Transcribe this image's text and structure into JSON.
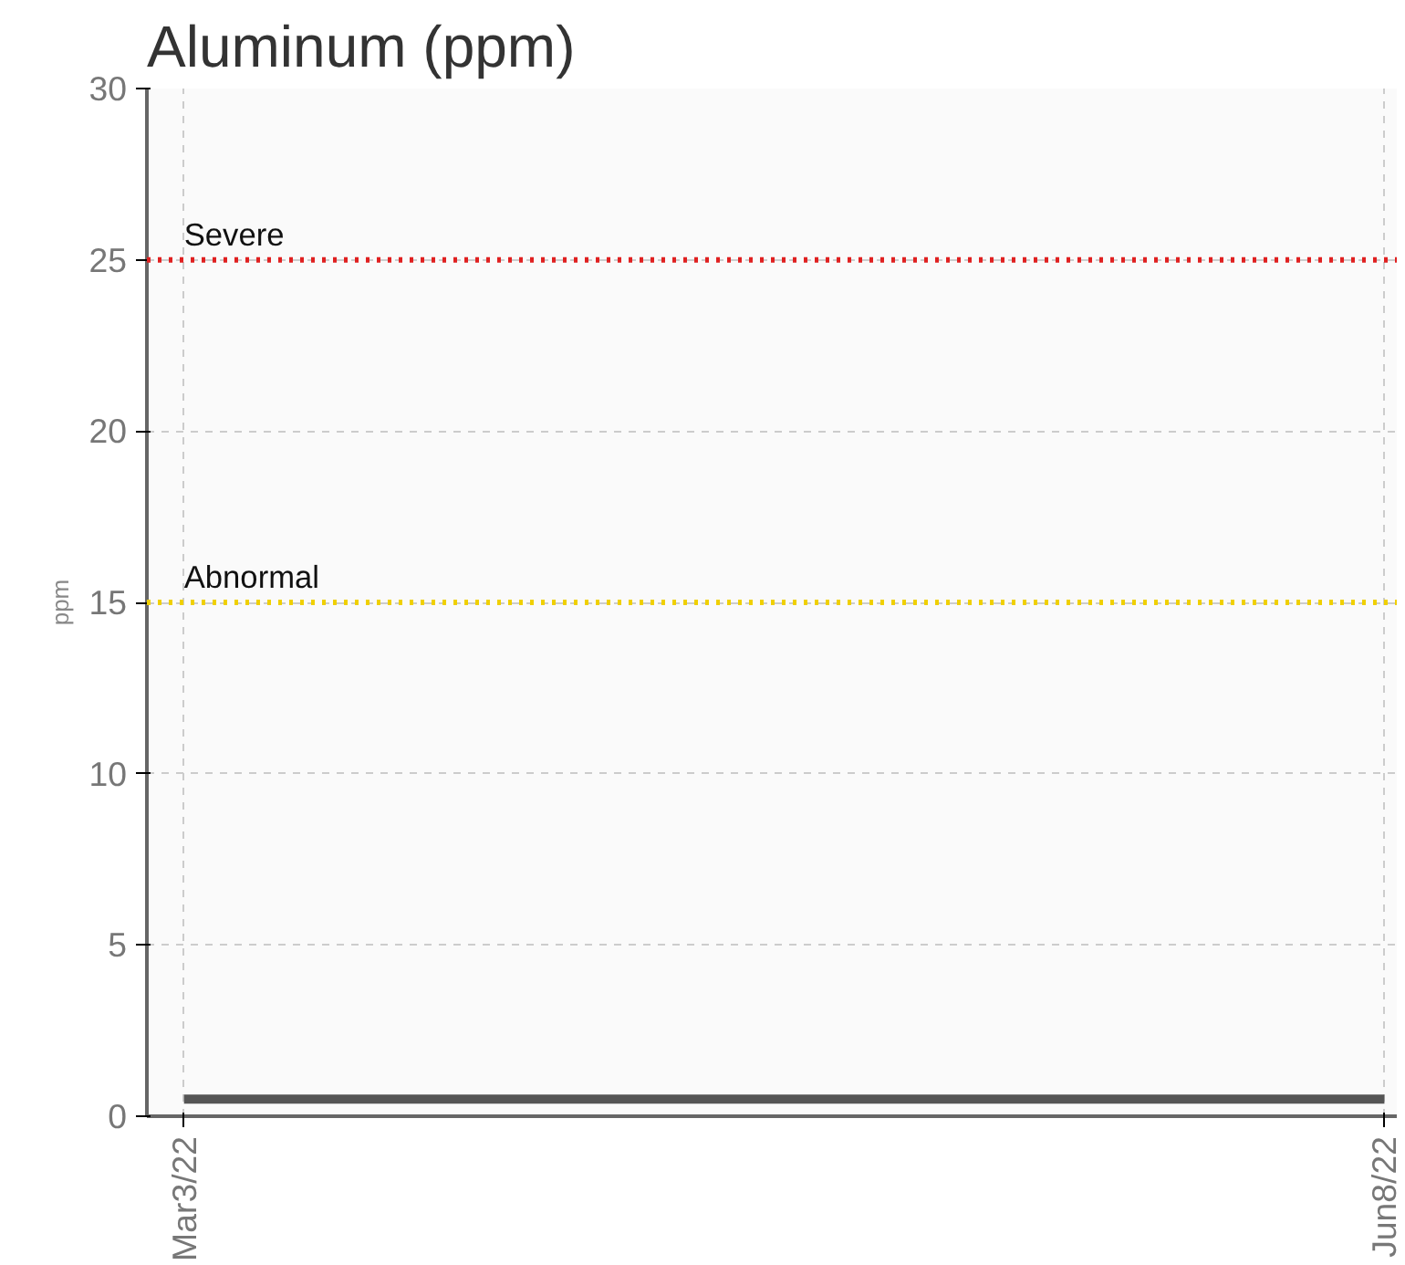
{
  "chart_data": {
    "type": "line",
    "title": "Aluminum (ppm)",
    "ylabel": "ppm",
    "x": [
      "2022-03-03",
      "2022-06-08"
    ],
    "series": [
      {
        "color": "#555555",
        "values": [
          0.5,
          0.5
        ]
      }
    ],
    "xlim": [
      "2022-02-28",
      "2022-06-09"
    ],
    "xticks": [
      {
        "value": "2022-03-03",
        "label": "Mar3/22"
      },
      {
        "value": "2022-06-08",
        "label": "Jun8/22"
      }
    ],
    "ylim": [
      0,
      30
    ],
    "yticks": [
      0,
      5,
      10,
      15,
      20,
      25,
      30
    ],
    "ref_lines": [
      {
        "axis": "y",
        "value": 25,
        "label": "Severe",
        "color": "#e02020",
        "line_style": "dotted"
      },
      {
        "axis": "y",
        "value": 15,
        "label": "Abnormal",
        "color": "#f0d000",
        "line_style": "dotted"
      }
    ],
    "grid": true,
    "marker": "none",
    "line_style": "solid"
  }
}
